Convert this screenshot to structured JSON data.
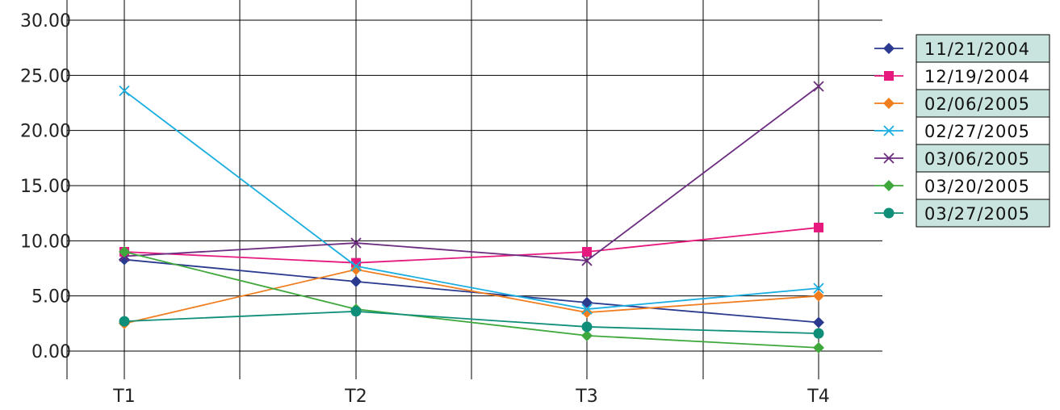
{
  "chart_data": {
    "type": "line",
    "title": "",
    "xlabel": "",
    "ylabel": "",
    "categories": [
      "T1",
      "T2",
      "T3",
      "T4"
    ],
    "ylim": [
      0,
      30
    ],
    "yticks": [
      "0.00",
      "5.00",
      "10.00",
      "15.00",
      "20.00",
      "25.00",
      "30.00"
    ],
    "grid": true,
    "legend_position": "right",
    "series": [
      {
        "name": "11/21/2004",
        "color": "#2a3a8f",
        "marker": "diamond",
        "values": [
          8.3,
          6.3,
          4.4,
          2.6
        ]
      },
      {
        "name": "12/19/2004",
        "color": "#e6197e",
        "marker": "square",
        "values": [
          9.0,
          8.0,
          9.0,
          11.2
        ]
      },
      {
        "name": "02/06/2005",
        "color": "#f07d1e",
        "marker": "diamond",
        "values": [
          2.5,
          7.4,
          3.5,
          5.0
        ]
      },
      {
        "name": "02/27/2005",
        "color": "#1aaee0",
        "marker": "x",
        "values": [
          23.6,
          7.7,
          3.8,
          5.7
        ]
      },
      {
        "name": "03/06/2005",
        "color": "#6b2d7f",
        "marker": "x",
        "values": [
          8.6,
          9.8,
          8.2,
          24.0
        ]
      },
      {
        "name": "03/20/2005",
        "color": "#3fa83c",
        "marker": "diamond",
        "values": [
          9.0,
          3.8,
          1.4,
          0.3
        ]
      },
      {
        "name": "03/27/2005",
        "color": "#0f8f7a",
        "marker": "circle",
        "values": [
          2.7,
          3.6,
          2.2,
          1.6
        ]
      }
    ]
  }
}
